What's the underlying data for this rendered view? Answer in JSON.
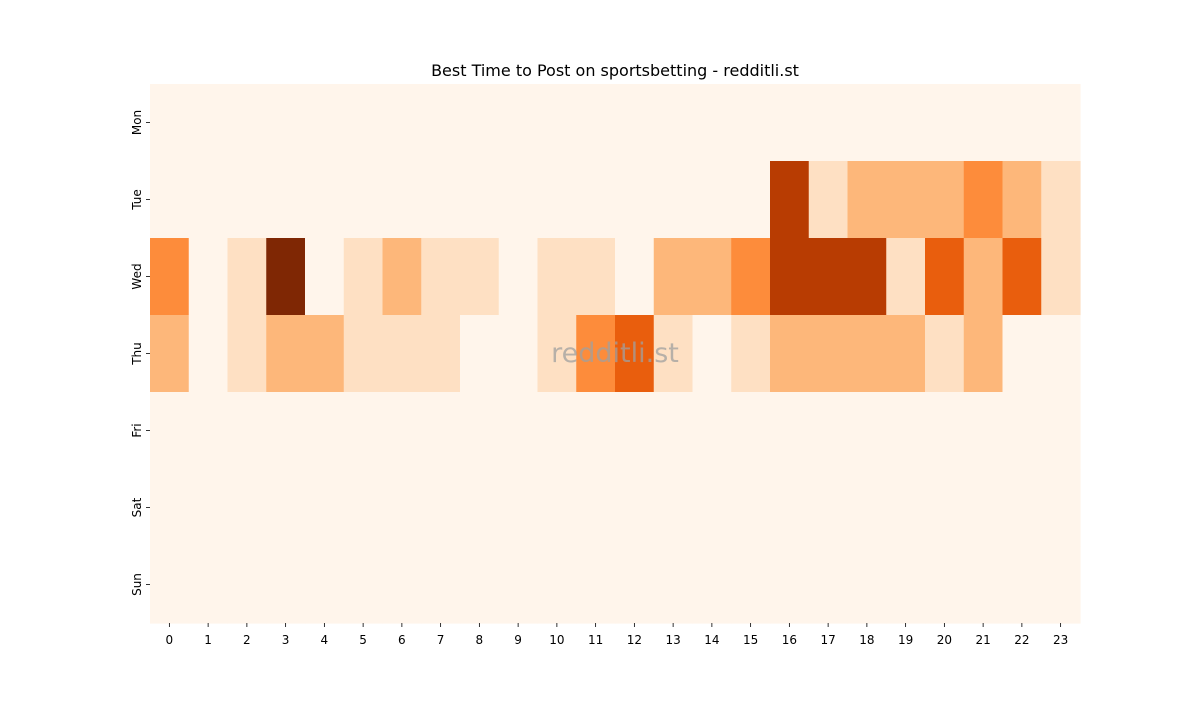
{
  "chart_data": {
    "type": "heatmap",
    "title": "Best Time to Post on sportsbetting - redditli.st",
    "watermark": "redditli.st",
    "xlabel": "",
    "ylabel": "",
    "x": [
      "0",
      "1",
      "2",
      "3",
      "4",
      "5",
      "6",
      "7",
      "8",
      "9",
      "10",
      "11",
      "12",
      "13",
      "14",
      "15",
      "16",
      "17",
      "18",
      "19",
      "20",
      "21",
      "22",
      "23"
    ],
    "y": [
      "Mon",
      "Tue",
      "Wed",
      "Thu",
      "Fri",
      "Sat",
      "Sun"
    ],
    "values": [
      [
        0,
        0,
        0,
        0,
        0,
        0,
        0,
        0,
        0,
        0,
        0,
        0,
        0,
        0,
        0,
        0,
        0,
        0,
        0,
        0,
        0,
        0,
        0,
        0
      ],
      [
        0,
        0,
        0,
        0,
        0,
        0,
        0,
        0,
        0,
        0,
        0,
        0,
        0,
        0,
        0,
        0,
        5,
        1,
        2,
        2,
        2,
        3,
        2,
        1
      ],
      [
        3,
        0,
        1,
        6,
        0,
        1,
        2,
        1,
        1,
        0,
        1,
        1,
        0,
        2,
        2,
        3,
        5,
        5,
        5,
        1,
        4,
        2,
        4,
        1
      ],
      [
        2,
        0,
        1,
        2,
        2,
        1,
        1,
        1,
        0,
        0,
        1,
        3,
        4,
        1,
        0,
        1,
        2,
        2,
        2,
        2,
        1,
        2,
        0,
        0
      ],
      [
        0,
        0,
        0,
        0,
        0,
        0,
        0,
        0,
        0,
        0,
        0,
        0,
        0,
        0,
        0,
        0,
        0,
        0,
        0,
        0,
        0,
        0,
        0,
        0
      ],
      [
        0,
        0,
        0,
        0,
        0,
        0,
        0,
        0,
        0,
        0,
        0,
        0,
        0,
        0,
        0,
        0,
        0,
        0,
        0,
        0,
        0,
        0,
        0,
        0
      ],
      [
        0,
        0,
        0,
        0,
        0,
        0,
        0,
        0,
        0,
        0,
        0,
        0,
        0,
        0,
        0,
        0,
        0,
        0,
        0,
        0,
        0,
        0,
        0,
        0
      ]
    ],
    "value_range": [
      0,
      6
    ],
    "colormap": [
      "#fff5eb",
      "#fee0c3",
      "#fdb77a",
      "#fd8c3b",
      "#e95e0d",
      "#b83c02",
      "#7f2704"
    ],
    "grid": false,
    "legend": "none"
  }
}
